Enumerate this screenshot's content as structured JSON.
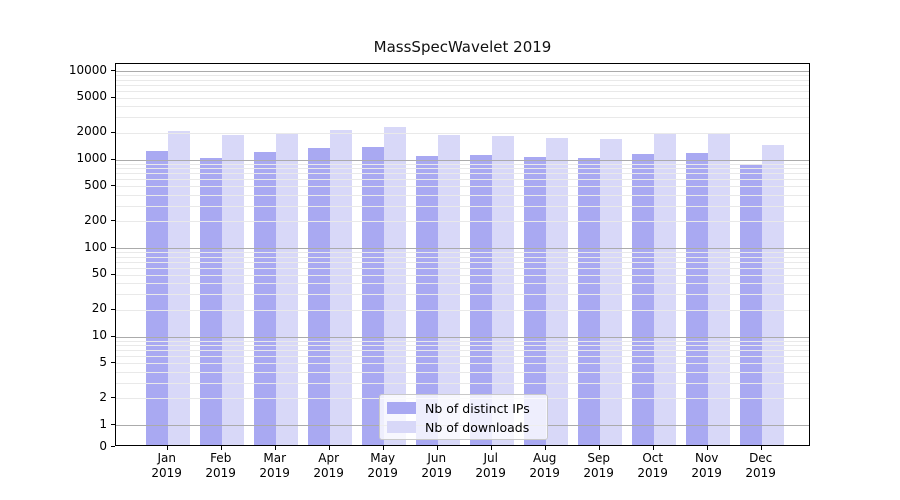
{
  "chart_data": {
    "type": "bar",
    "title": "MassSpecWavelet 2019",
    "categories": [
      "Jan 2019",
      "Feb 2019",
      "Mar 2019",
      "Apr 2019",
      "May 2019",
      "Jun 2019",
      "Jul 2019",
      "Aug 2019",
      "Sep 2019",
      "Oct 2019",
      "Nov 2019",
      "Dec 2019"
    ],
    "series": [
      {
        "name": "Nb of distinct IPs",
        "color": "#a9a9f2",
        "values": [
          1200,
          1000,
          1160,
          1270,
          1300,
          1050,
          1080,
          1010,
          980,
          1110,
          1140,
          850
        ]
      },
      {
        "name": "Nb of downloads",
        "color": "#d8d8f8",
        "values": [
          2020,
          1810,
          1900,
          2040,
          2230,
          1810,
          1760,
          1670,
          1640,
          1880,
          1830,
          1370
        ]
      }
    ],
    "xlabel": "",
    "ylabel": "",
    "yscale": "log (with 0 baseline)",
    "ylim": [
      0,
      10000
    ],
    "yticks": [
      0,
      1,
      2,
      5,
      10,
      20,
      50,
      100,
      200,
      500,
      1000,
      2000,
      5000,
      10000
    ],
    "grid": "horizontal major (decades darker) + log minor, drawn over bars",
    "legend_position": "lower center"
  }
}
